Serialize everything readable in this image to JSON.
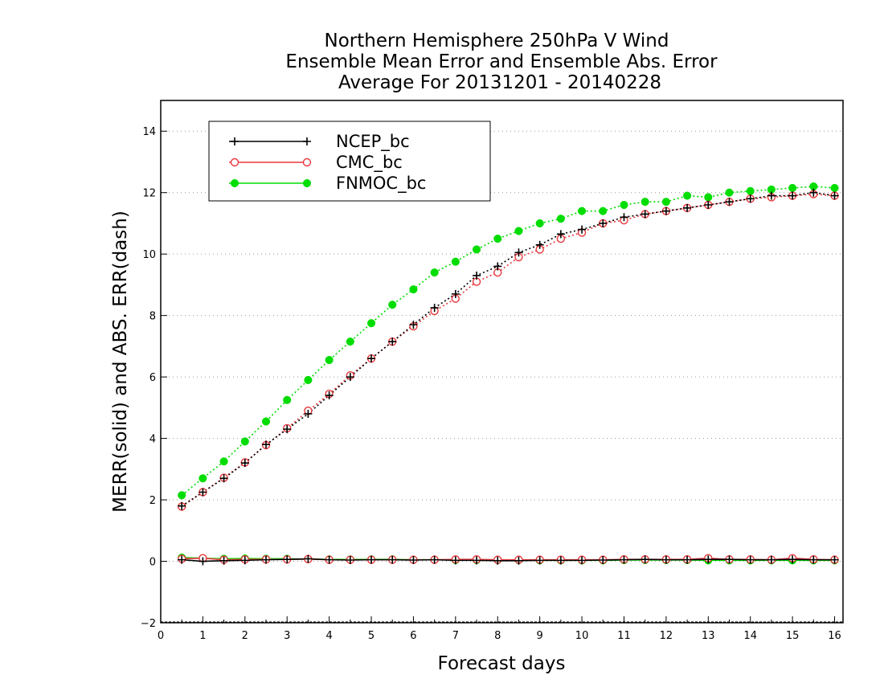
{
  "chart_data": {
    "type": "line",
    "title": [
      "Northern Hemisphere 250hPa V Wind",
      "Ensemble Mean Error and Ensemble Abs. Error",
      "Average For 20131201 - 20140228"
    ],
    "xlabel": "Forecast days",
    "ylabel": "MERR(solid) and ABS. ERR(dash)",
    "xlim": [
      0,
      16.2
    ],
    "ylim": [
      -2,
      15
    ],
    "xticks": [
      0,
      1,
      2,
      3,
      4,
      5,
      6,
      7,
      8,
      9,
      10,
      11,
      12,
      13,
      14,
      15,
      16
    ],
    "yticks": [
      -2,
      0,
      2,
      4,
      6,
      8,
      10,
      12,
      14
    ],
    "grid": "horizontal dotted",
    "legend_placement": "top-left",
    "x": [
      0.5,
      1.0,
      1.5,
      2.0,
      2.5,
      3.0,
      3.5,
      4.0,
      4.5,
      5.0,
      5.5,
      6.0,
      6.5,
      7.0,
      7.5,
      8.0,
      8.5,
      9.0,
      9.5,
      10.0,
      10.5,
      11.0,
      11.5,
      12.0,
      12.5,
      13.0,
      13.5,
      14.0,
      14.5,
      15.0,
      15.5,
      16.0
    ],
    "series": [
      {
        "name": "NCEP_bc",
        "color": "#000000",
        "marker": "plus",
        "abs_err": [
          1.8,
          2.25,
          2.7,
          3.2,
          3.8,
          4.3,
          4.8,
          5.4,
          6.0,
          6.6,
          7.15,
          7.7,
          8.25,
          8.7,
          9.3,
          9.6,
          10.05,
          10.3,
          10.65,
          10.8,
          11.0,
          11.2,
          11.3,
          11.4,
          11.5,
          11.6,
          11.7,
          11.8,
          11.9,
          11.9,
          12.0,
          11.9
        ],
        "mean_err": [
          0.05,
          0.0,
          0.02,
          0.03,
          0.05,
          0.06,
          0.08,
          0.05,
          0.04,
          0.05,
          0.05,
          0.04,
          0.05,
          0.03,
          0.03,
          0.02,
          0.02,
          0.03,
          0.03,
          0.03,
          0.04,
          0.05,
          0.06,
          0.05,
          0.05,
          0.06,
          0.06,
          0.05,
          0.05,
          0.06,
          0.05,
          0.05
        ]
      },
      {
        "name": "CMC_bc",
        "color": "#e8383d",
        "marker": "open-circle",
        "abs_err": [
          1.78,
          2.25,
          2.72,
          3.22,
          3.78,
          4.33,
          4.9,
          5.45,
          6.05,
          6.6,
          7.15,
          7.65,
          8.15,
          8.55,
          9.1,
          9.4,
          9.9,
          10.15,
          10.5,
          10.7,
          11.0,
          11.1,
          11.3,
          11.4,
          11.5,
          11.6,
          11.7,
          11.8,
          11.85,
          11.9,
          11.95,
          11.9
        ],
        "mean_err": [
          0.08,
          0.1,
          0.05,
          0.06,
          0.06,
          0.06,
          0.07,
          0.05,
          0.05,
          0.05,
          0.05,
          0.05,
          0.05,
          0.06,
          0.06,
          0.05,
          0.05,
          0.05,
          0.05,
          0.05,
          0.05,
          0.06,
          0.06,
          0.06,
          0.06,
          0.1,
          0.06,
          0.06,
          0.05,
          0.1,
          0.06,
          0.05
        ]
      },
      {
        "name": "FNMOC_bc",
        "color": "#00dd00",
        "marker": "filled-circle",
        "abs_err": [
          2.15,
          2.7,
          3.25,
          3.9,
          4.55,
          5.25,
          5.9,
          6.55,
          7.15,
          7.75,
          8.35,
          8.85,
          9.4,
          9.75,
          10.15,
          10.5,
          10.75,
          11.0,
          11.15,
          11.4,
          11.4,
          11.6,
          11.7,
          11.7,
          11.9,
          11.85,
          12.0,
          12.05,
          12.1,
          12.15,
          12.2,
          12.15
        ],
        "mean_err": [
          0.12,
          0.1,
          0.08,
          0.09,
          0.08,
          0.08,
          0.07,
          0.06,
          0.06,
          0.06,
          0.06,
          0.05,
          0.05,
          0.04,
          0.04,
          0.04,
          0.04,
          0.03,
          0.03,
          0.03,
          0.03,
          0.04,
          0.04,
          0.04,
          0.04,
          0.03,
          0.03,
          0.03,
          0.03,
          0.03,
          0.03,
          0.03
        ]
      }
    ]
  }
}
